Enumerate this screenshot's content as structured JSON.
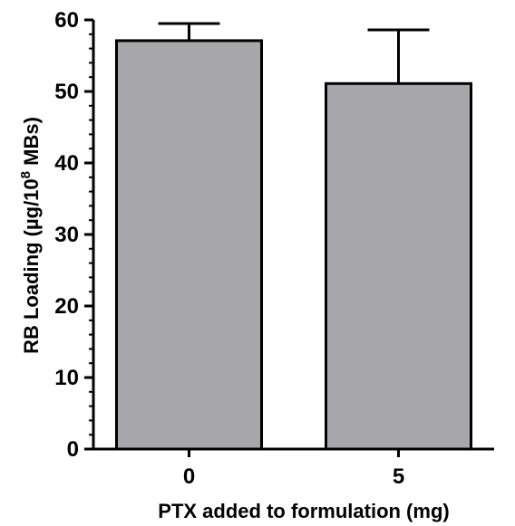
{
  "chart_data": {
    "type": "bar",
    "categories": [
      "0",
      "5"
    ],
    "values": [
      57.1,
      51.1
    ],
    "error_upper": [
      59.5,
      58.6
    ],
    "xlabel": "PTX added to formulation (mg)",
    "ylabel": {
      "prefix": "RB Loading (µg/10",
      "superscript": "8",
      "suffix": " MBs)"
    },
    "ylim": [
      0,
      60
    ],
    "yticks": [
      "0",
      "10",
      "20",
      "30",
      "40",
      "50",
      "60"
    ],
    "grid": false,
    "bar_color": "#a7a6ab",
    "edge_color": "#000000"
  }
}
